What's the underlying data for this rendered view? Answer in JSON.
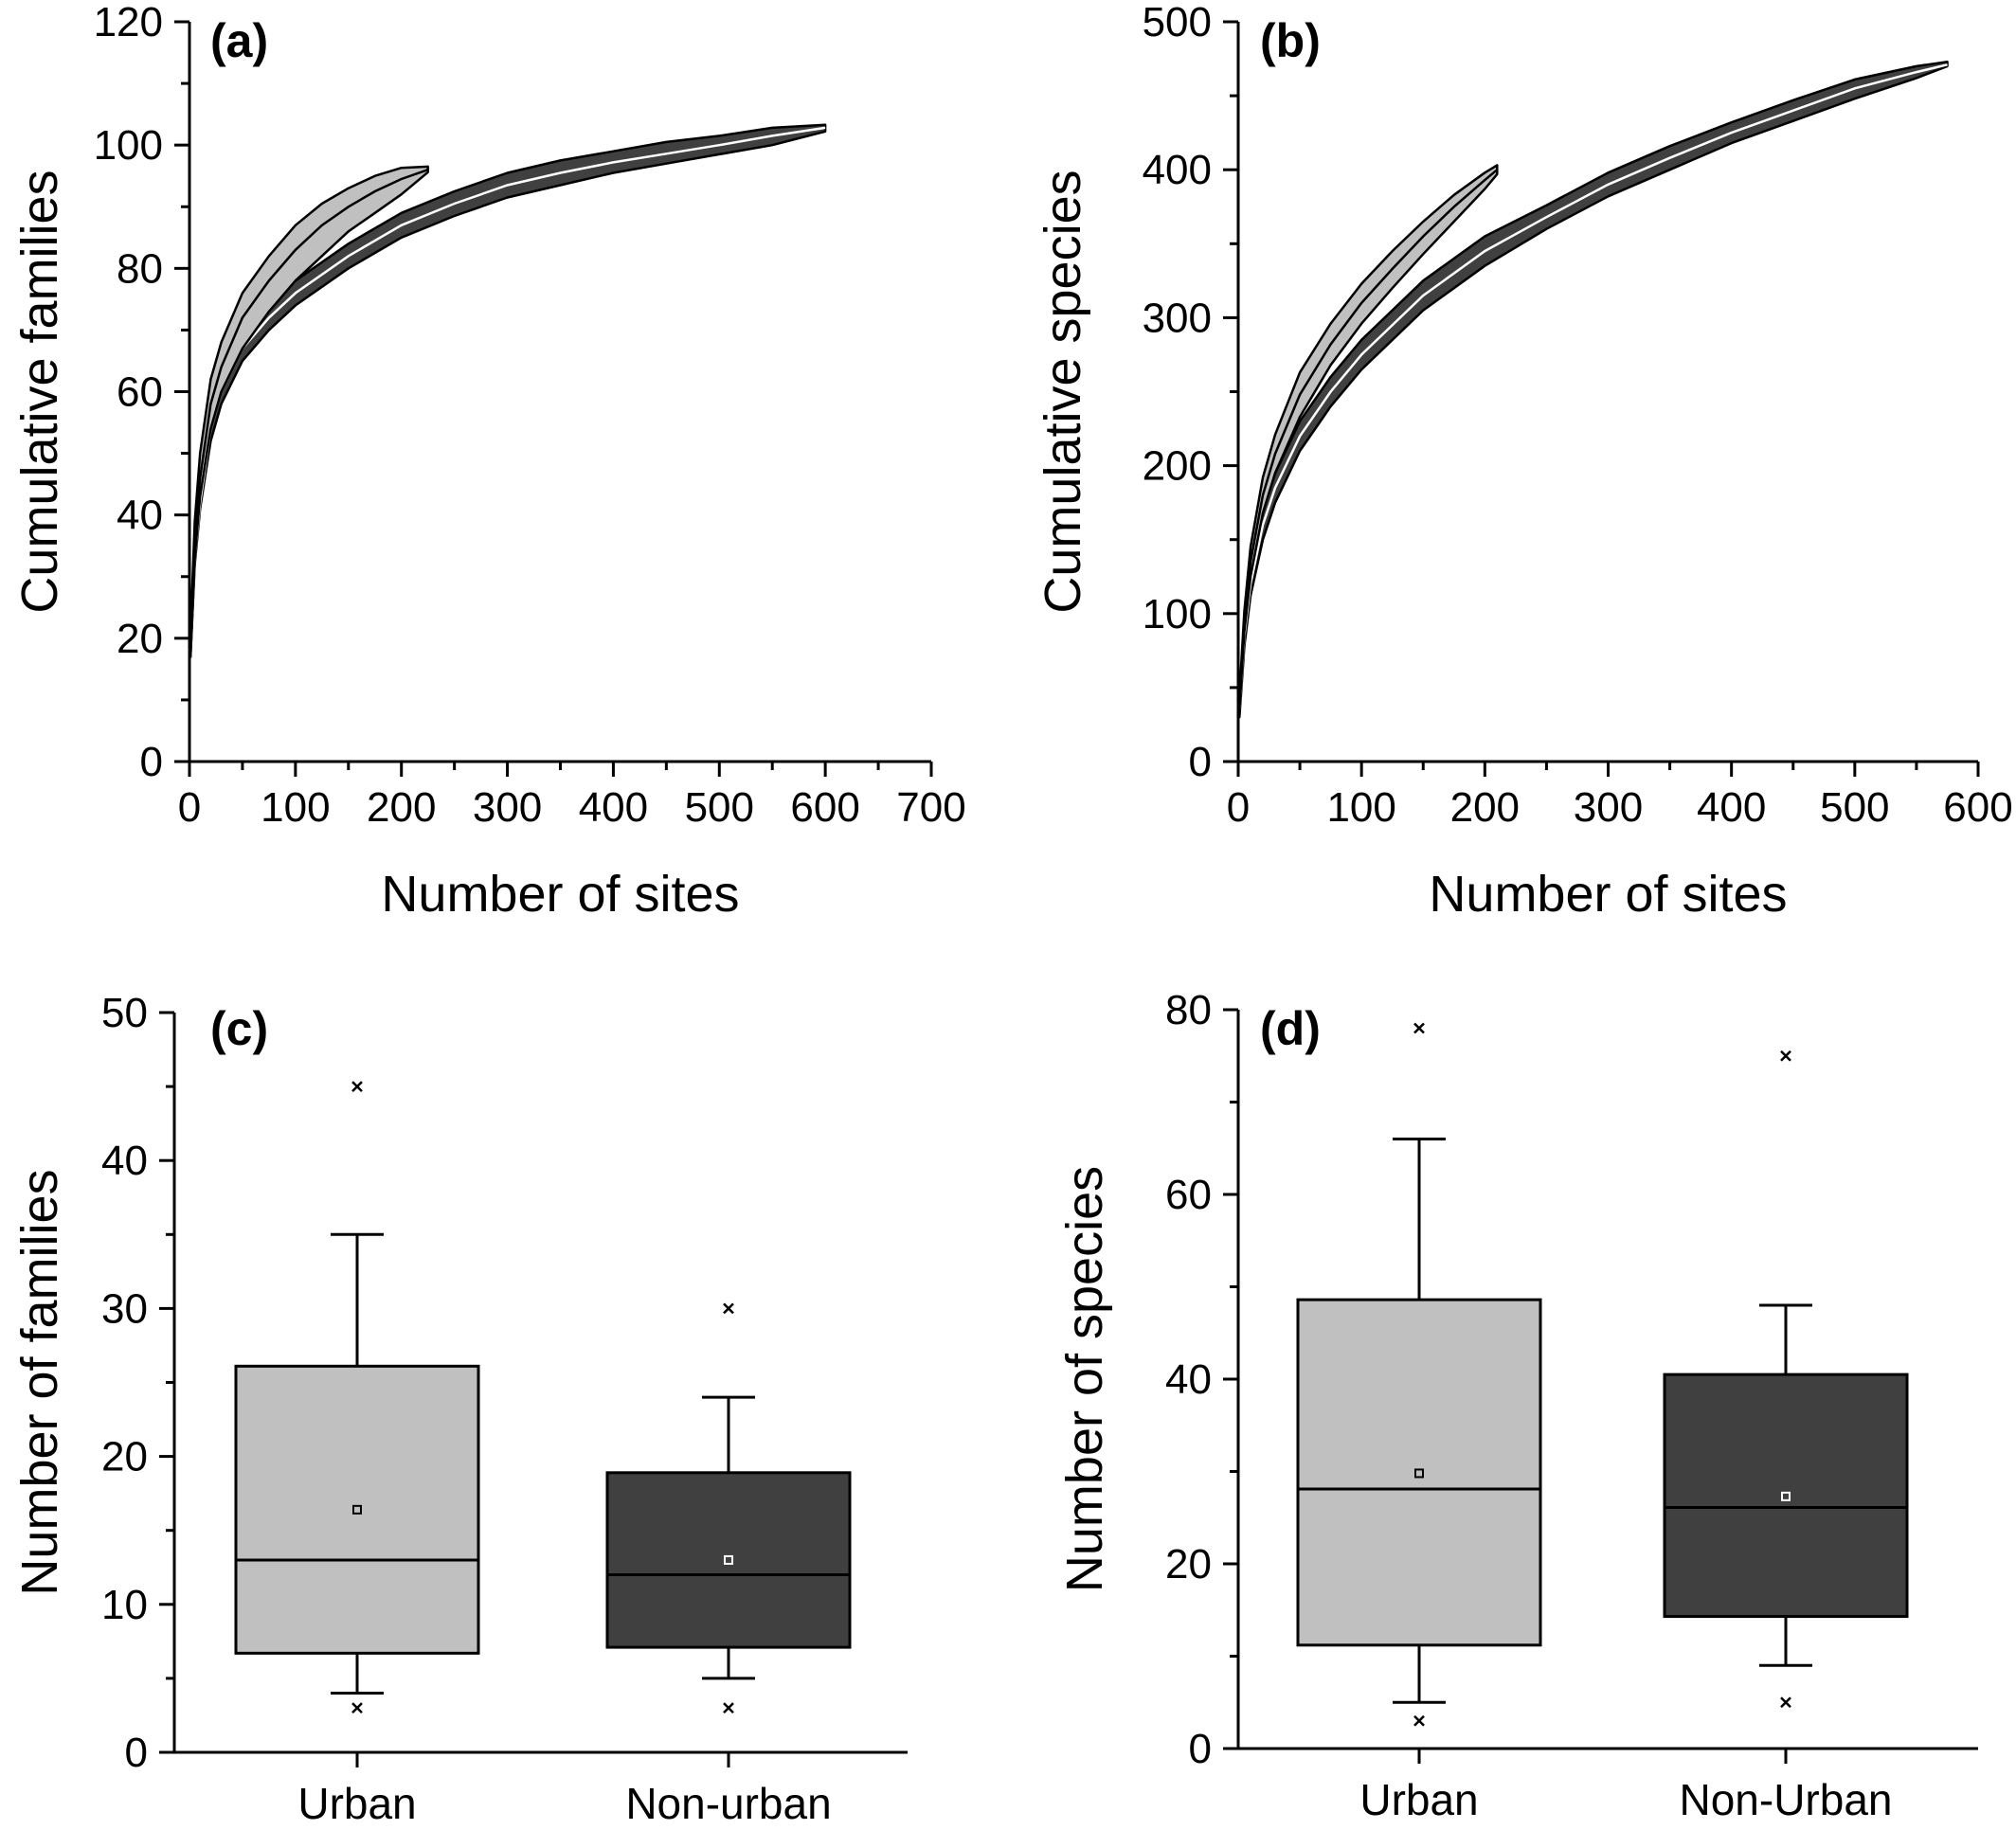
{
  "colors": {
    "urban_fill": "#c0c0c0",
    "nonurban_fill": "#404040",
    "mean_line": "#ffffff",
    "axis": "#000000"
  },
  "chart_data": [
    {
      "id": "a",
      "panel_label": "(a)",
      "type": "area",
      "xlabel": "Number of sites",
      "ylabel": "Cumulative families",
      "xlim": [
        0,
        700
      ],
      "ylim": [
        0,
        120
      ],
      "xticks": [
        0,
        100,
        200,
        300,
        400,
        500,
        600,
        700
      ],
      "yticks": [
        0,
        20,
        40,
        60,
        80,
        100,
        120
      ],
      "grid": false,
      "series": [
        {
          "key": "nonurban",
          "fill": "#404040",
          "x": [
            1,
            5,
            10,
            20,
            30,
            50,
            75,
            100,
            150,
            200,
            250,
            300,
            350,
            400,
            450,
            500,
            550,
            600
          ],
          "mean": [
            18,
            33,
            42,
            54,
            60,
            67,
            72,
            76,
            82,
            87,
            90.5,
            93.5,
            95.5,
            97.2,
            98.6,
            100,
            101.5,
            102.8
          ],
          "lower": [
            17,
            32,
            41,
            52,
            58,
            65,
            70,
            74,
            80,
            85,
            88.5,
            91.5,
            93.5,
            95.5,
            97,
            98.5,
            100,
            102.2
          ],
          "upper": [
            19,
            34,
            43,
            56,
            62,
            69,
            74,
            78,
            84,
            89,
            92.5,
            95.5,
            97.5,
            99,
            100.5,
            101.5,
            102.8,
            103.3
          ]
        },
        {
          "key": "urban",
          "fill": "#c0c0c0",
          "x": [
            1,
            5,
            10,
            20,
            30,
            50,
            75,
            100,
            125,
            150,
            175,
            200,
            225
          ],
          "mean": [
            19,
            36,
            46,
            58,
            64,
            72,
            78,
            83,
            87,
            90,
            92.5,
            94.5,
            96
          ],
          "lower": [
            17,
            33,
            43,
            54,
            60,
            67,
            73,
            78,
            82,
            86,
            89,
            92,
            95.6
          ],
          "upper": [
            21,
            39,
            50,
            62,
            68,
            76,
            82,
            87,
            90.5,
            93,
            95,
            96.3,
            96.5
          ]
        }
      ]
    },
    {
      "id": "b",
      "panel_label": "(b)",
      "type": "area",
      "xlabel": "Number of sites",
      "ylabel": "Cumulative species",
      "xlim": [
        0,
        600
      ],
      "ylim": [
        0,
        500
      ],
      "xticks": [
        0,
        100,
        200,
        300,
        400,
        500,
        600
      ],
      "yticks": [
        0,
        100,
        200,
        300,
        400,
        500
      ],
      "grid": false,
      "series": [
        {
          "key": "nonurban",
          "fill": "#404040",
          "x": [
            1,
            5,
            10,
            20,
            30,
            50,
            75,
            100,
            150,
            200,
            250,
            300,
            350,
            400,
            450,
            500,
            550,
            575
          ],
          "mean": [
            35,
            85,
            120,
            160,
            185,
            220,
            250,
            275,
            315,
            345,
            368,
            390,
            408,
            425,
            440,
            455,
            466,
            471
          ],
          "lower": [
            30,
            78,
            112,
            150,
            175,
            210,
            240,
            265,
            305,
            335,
            360,
            382,
            400,
            418,
            433,
            448,
            462,
            470
          ],
          "upper": [
            40,
            92,
            128,
            170,
            195,
            230,
            260,
            285,
            325,
            355,
            376,
            398,
            416,
            432,
            447,
            461,
            470,
            473
          ]
        },
        {
          "key": "urban",
          "fill": "#c0c0c0",
          "x": [
            1,
            5,
            10,
            20,
            30,
            50,
            75,
            100,
            125,
            150,
            175,
            200,
            210
          ],
          "mean": [
            40,
            95,
            135,
            180,
            208,
            248,
            282,
            310,
            333,
            355,
            375,
            393,
            400
          ],
          "lower": [
            35,
            88,
            125,
            168,
            195,
            233,
            268,
            296,
            320,
            343,
            365,
            387,
            397
          ],
          "upper": [
            45,
            102,
            145,
            192,
            221,
            263,
            296,
            323,
            345,
            365,
            383,
            398,
            403
          ]
        }
      ]
    },
    {
      "id": "c",
      "panel_label": "(c)",
      "type": "box",
      "ylabel": "Number of families",
      "categories": [
        "Urban",
        "Non-urban"
      ],
      "ylim": [
        0,
        50
      ],
      "yticks": [
        0,
        10,
        20,
        30,
        40,
        50
      ],
      "grid": false,
      "boxes": [
        {
          "min": 3,
          "whisker_low": 4,
          "q1": 6.7,
          "median": 13,
          "mean": 16.4,
          "q3": 26.1,
          "whisker_high": 35,
          "max": 45,
          "fill": "#c0c0c0"
        },
        {
          "min": 3,
          "whisker_low": 5,
          "q1": 7.1,
          "median": 12,
          "mean": 13,
          "q3": 18.9,
          "whisker_high": 24,
          "max": 30,
          "fill": "#404040"
        }
      ]
    },
    {
      "id": "d",
      "panel_label": "(d)",
      "type": "box",
      "ylabel": "Number of species",
      "categories": [
        "Urban",
        "Non-Urban"
      ],
      "ylim": [
        0,
        80
      ],
      "yticks": [
        0,
        20,
        40,
        60,
        80
      ],
      "grid": false,
      "boxes": [
        {
          "min": 3,
          "whisker_low": 5,
          "q1": 11.2,
          "median": 28.1,
          "mean": 29.8,
          "q3": 48.6,
          "whisker_high": 66,
          "max": 78,
          "fill": "#c0c0c0"
        },
        {
          "min": 5,
          "whisker_low": 9,
          "q1": 14.3,
          "median": 26.1,
          "mean": 27.3,
          "q3": 40.5,
          "whisker_high": 48,
          "max": 75,
          "fill": "#404040"
        }
      ]
    }
  ]
}
